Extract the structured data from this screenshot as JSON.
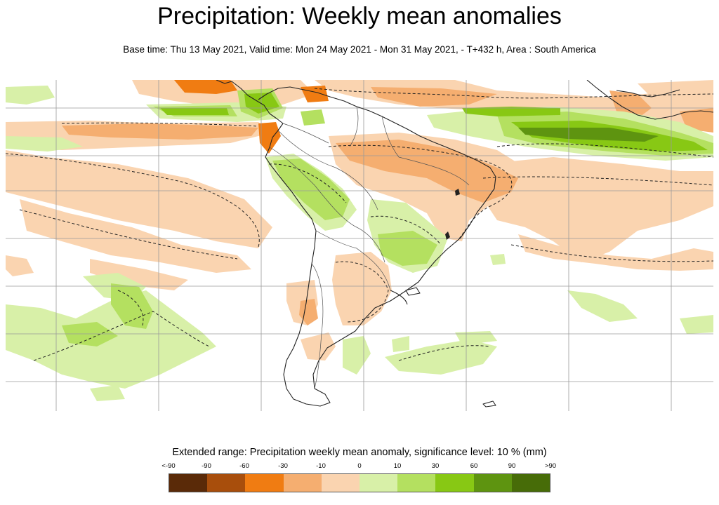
{
  "header": {
    "title": "Precipitation: Weekly mean anomalies",
    "subtitle": "Base time: Thu 13 May 2021, Valid time: Mon 24 May 2021 - Mon 31 May 2021, - T+432 h, Area : South America"
  },
  "map": {
    "area": "South America",
    "gridlines": true,
    "contour_style": "dashed"
  },
  "legend": {
    "title": "Extended range: Precipitation weekly mean anomaly, significance level: 10 % (mm)",
    "tick_labels": [
      "<-90",
      "-90",
      "-60",
      "-30",
      "-10",
      "0",
      "10",
      "30",
      "60",
      "90",
      ">90"
    ],
    "colors": [
      "#5a2a08",
      "#a84e0c",
      "#f07c12",
      "#f5ae70",
      "#fad4b0",
      "#d8f0a8",
      "#b4e060",
      "#88c814",
      "#5e9410",
      "#476c08"
    ]
  }
}
